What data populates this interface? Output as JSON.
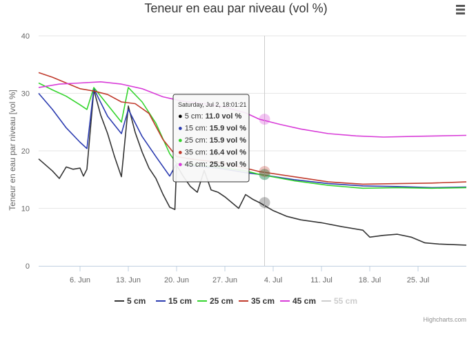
{
  "chart_data": {
    "type": "line",
    "title": "Teneur en eau par niveau (vol %)",
    "ylabel": "Teneur en eau par niveau [vol %]",
    "xlabel": "",
    "ylim": [
      0,
      40
    ],
    "yticks": [
      "0",
      "10",
      "20",
      "30",
      "40"
    ],
    "xlim": [
      "2016-05-31",
      "2016-08-01"
    ],
    "xticks": [
      {
        "date": "2016-06-06",
        "label": "6. Jun"
      },
      {
        "date": "2016-06-13",
        "label": "13. Jun"
      },
      {
        "date": "2016-06-20",
        "label": "20. Jun"
      },
      {
        "date": "2016-06-27",
        "label": "27. Jun"
      },
      {
        "date": "2016-07-04",
        "label": "4. Jul"
      },
      {
        "date": "2016-07-11",
        "label": "11. Jul"
      },
      {
        "date": "2016-07-18",
        "label": "18. Jul"
      },
      {
        "date": "2016-07-25",
        "label": "25. Jul"
      }
    ],
    "grid": "horizontal",
    "legend_position": "bottom",
    "series": [
      {
        "name": "5 cm",
        "color": "#333333",
        "visible": true,
        "points": [
          [
            "2016-05-31",
            18.6
          ],
          [
            "2016-06-02",
            16.5
          ],
          [
            "2016-06-03",
            15.2
          ],
          [
            "2016-06-04",
            17.2
          ],
          [
            "2016-06-05",
            16.8
          ],
          [
            "2016-06-06",
            17.0
          ],
          [
            "2016-06-06T12",
            15.6
          ],
          [
            "2016-06-07",
            16.8
          ],
          [
            "2016-06-08",
            30.6
          ],
          [
            "2016-06-09",
            26.2
          ],
          [
            "2016-06-10",
            23.0
          ],
          [
            "2016-06-11",
            19.0
          ],
          [
            "2016-06-12",
            15.5
          ],
          [
            "2016-06-13",
            27.8
          ],
          [
            "2016-06-14",
            23.2
          ],
          [
            "2016-06-15",
            19.8
          ],
          [
            "2016-06-16",
            17.0
          ],
          [
            "2016-06-17",
            15.2
          ],
          [
            "2016-06-18",
            12.5
          ],
          [
            "2016-06-19",
            10.2
          ],
          [
            "2016-06-19T18",
            9.8
          ],
          [
            "2016-06-20",
            17.5
          ],
          [
            "2016-06-21",
            15.5
          ],
          [
            "2016-06-22",
            13.8
          ],
          [
            "2016-06-23",
            12.8
          ],
          [
            "2016-06-24",
            16.6
          ],
          [
            "2016-06-25",
            13.2
          ],
          [
            "2016-06-26",
            12.8
          ],
          [
            "2016-06-27",
            12.0
          ],
          [
            "2016-06-28",
            11.0
          ],
          [
            "2016-06-29",
            10.0
          ],
          [
            "2016-06-30",
            12.4
          ],
          [
            "2016-07-01",
            11.6
          ],
          [
            "2016-07-02",
            11.0
          ],
          [
            "2016-07-04",
            9.6
          ],
          [
            "2016-07-06",
            8.6
          ],
          [
            "2016-07-08",
            8.0
          ],
          [
            "2016-07-11",
            7.5
          ],
          [
            "2016-07-14",
            6.8
          ],
          [
            "2016-07-17",
            6.2
          ],
          [
            "2016-07-18",
            5.0
          ],
          [
            "2016-07-20",
            5.3
          ],
          [
            "2016-07-22",
            5.5
          ],
          [
            "2016-07-24",
            5.0
          ],
          [
            "2016-07-26",
            4.0
          ],
          [
            "2016-07-28",
            3.8
          ],
          [
            "2016-08-01",
            3.6
          ]
        ]
      },
      {
        "name": "15 cm",
        "color": "#2b3bb0",
        "visible": true,
        "points": [
          [
            "2016-05-31",
            30.0
          ],
          [
            "2016-06-02",
            27.2
          ],
          [
            "2016-06-04",
            24.0
          ],
          [
            "2016-06-06",
            21.5
          ],
          [
            "2016-06-07",
            20.4
          ],
          [
            "2016-06-08",
            30.8
          ],
          [
            "2016-06-10",
            26.0
          ],
          [
            "2016-06-12",
            23.0
          ],
          [
            "2016-06-13",
            27.2
          ],
          [
            "2016-06-15",
            22.5
          ],
          [
            "2016-06-17",
            19.0
          ],
          [
            "2016-06-19",
            15.6
          ],
          [
            "2016-06-20",
            17.8
          ],
          [
            "2016-06-22",
            17.4
          ],
          [
            "2016-06-26",
            17.0
          ],
          [
            "2016-06-30",
            16.2
          ],
          [
            "2016-07-02",
            15.9
          ],
          [
            "2016-07-07",
            15.0
          ],
          [
            "2016-07-12",
            14.3
          ],
          [
            "2016-07-17",
            13.9
          ],
          [
            "2016-07-22",
            13.8
          ],
          [
            "2016-07-27",
            13.6
          ],
          [
            "2016-08-01",
            13.7
          ]
        ]
      },
      {
        "name": "25 cm",
        "color": "#33d42c",
        "visible": true,
        "points": [
          [
            "2016-05-31",
            31.8
          ],
          [
            "2016-06-02",
            30.6
          ],
          [
            "2016-06-04",
            29.5
          ],
          [
            "2016-06-06",
            28.0
          ],
          [
            "2016-06-07",
            27.2
          ],
          [
            "2016-06-08",
            31.0
          ],
          [
            "2016-06-10",
            28.0
          ],
          [
            "2016-06-12",
            25.0
          ],
          [
            "2016-06-13",
            31.0
          ],
          [
            "2016-06-15",
            28.5
          ],
          [
            "2016-06-17",
            24.8
          ],
          [
            "2016-06-19",
            19.5
          ],
          [
            "2016-06-20",
            17.8
          ],
          [
            "2016-06-22",
            17.6
          ],
          [
            "2016-06-26",
            17.2
          ],
          [
            "2016-06-30",
            16.5
          ],
          [
            "2016-07-02",
            15.9
          ],
          [
            "2016-07-07",
            14.8
          ],
          [
            "2016-07-12",
            14.0
          ],
          [
            "2016-07-17",
            13.5
          ],
          [
            "2016-07-22",
            13.6
          ],
          [
            "2016-07-27",
            13.5
          ],
          [
            "2016-08-01",
            13.6
          ]
        ]
      },
      {
        "name": "35 cm",
        "color": "#c0392b",
        "visible": true,
        "points": [
          [
            "2016-05-31",
            33.6
          ],
          [
            "2016-06-02",
            32.8
          ],
          [
            "2016-06-04",
            31.8
          ],
          [
            "2016-06-06",
            30.8
          ],
          [
            "2016-06-08",
            30.4
          ],
          [
            "2016-06-10",
            29.8
          ],
          [
            "2016-06-12",
            28.5
          ],
          [
            "2016-06-14",
            28.2
          ],
          [
            "2016-06-16",
            26.5
          ],
          [
            "2016-06-18",
            22.0
          ],
          [
            "2016-06-20",
            19.0
          ],
          [
            "2016-06-22",
            18.6
          ],
          [
            "2016-06-26",
            18.0
          ],
          [
            "2016-06-30",
            17.0
          ],
          [
            "2016-07-02",
            16.4
          ],
          [
            "2016-07-07",
            15.5
          ],
          [
            "2016-07-12",
            14.6
          ],
          [
            "2016-07-17",
            14.2
          ],
          [
            "2016-07-22",
            14.3
          ],
          [
            "2016-07-27",
            14.4
          ],
          [
            "2016-08-01",
            14.6
          ]
        ]
      },
      {
        "name": "45 cm",
        "color": "#d83bd8",
        "visible": true,
        "points": [
          [
            "2016-05-31",
            31.0
          ],
          [
            "2016-06-03",
            31.6
          ],
          [
            "2016-06-06",
            31.8
          ],
          [
            "2016-06-09",
            32.0
          ],
          [
            "2016-06-12",
            31.6
          ],
          [
            "2016-06-15",
            30.8
          ],
          [
            "2016-06-18",
            29.4
          ],
          [
            "2016-06-21",
            28.6
          ],
          [
            "2016-06-24",
            28.2
          ],
          [
            "2016-06-27",
            27.6
          ],
          [
            "2016-06-30",
            26.6
          ],
          [
            "2016-07-02",
            25.5
          ],
          [
            "2016-07-05",
            24.6
          ],
          [
            "2016-07-08",
            23.8
          ],
          [
            "2016-07-12",
            23.0
          ],
          [
            "2016-07-16",
            22.6
          ],
          [
            "2016-07-20",
            22.4
          ],
          [
            "2016-07-24",
            22.5
          ],
          [
            "2016-07-28",
            22.6
          ],
          [
            "2016-08-01",
            22.7
          ]
        ]
      },
      {
        "name": "55 cm",
        "color": "#cccccc",
        "visible": false,
        "points": []
      }
    ]
  },
  "tooltip": {
    "header": "Saturday, Jul 2, 18:01:21",
    "date": "2016-07-02",
    "rows": [
      {
        "color": "#000000",
        "label": "5 cm: ",
        "value": "11.0 vol %"
      },
      {
        "color": "#2b3bb0",
        "label": "15 cm: ",
        "value": "15.9 vol %"
      },
      {
        "color": "#33d42c",
        "label": "25 cm: ",
        "value": "15.9 vol %"
      },
      {
        "color": "#c0392b",
        "label": "35 cm: ",
        "value": "16.4 vol %"
      },
      {
        "color": "#d83bd8",
        "label": "45 cm: ",
        "value": "25.5 vol %"
      }
    ]
  },
  "credits": "Highcharts.com",
  "menu_icon": "hamburger-menu-icon"
}
